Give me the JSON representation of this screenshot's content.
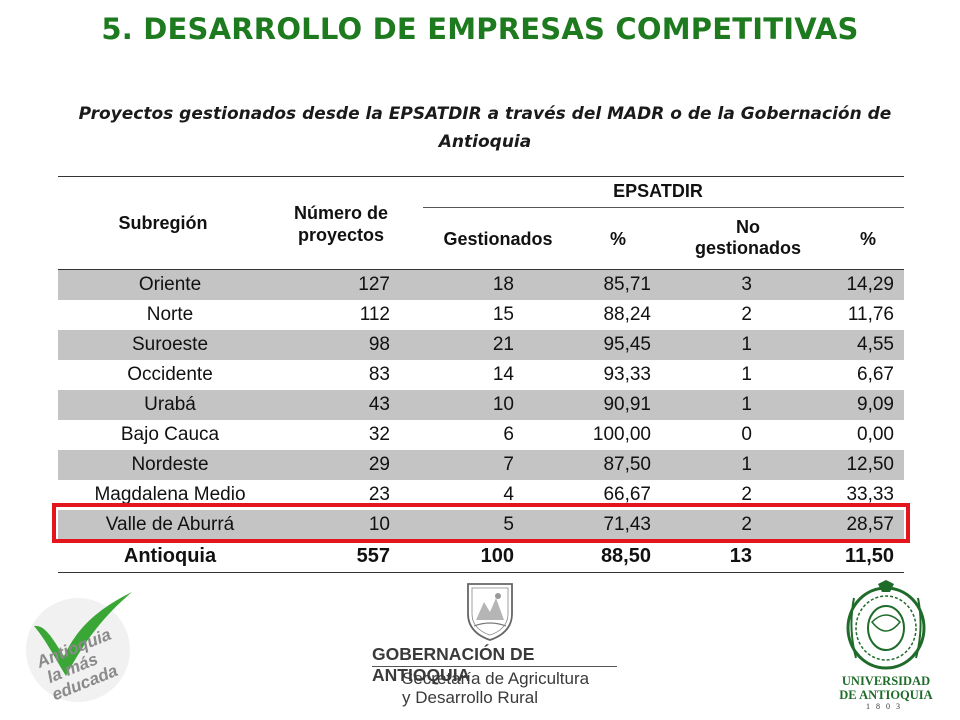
{
  "title": "5. DESARROLLO DE EMPRESAS COMPETITIVAS",
  "subtitle_line1": "Proyectos gestionados desde la EPSATDIR a través del MADR o de la Gobernación de",
  "subtitle_line2": "Antioquia",
  "table": {
    "headers": {
      "subregion": "Subregión",
      "numero_l1": "Número de",
      "numero_l2": "proyectos",
      "group": "EPSATDIR",
      "gestionados": "Gestionados",
      "pct": "%",
      "no_l1": "No",
      "no_l2": "gestionados",
      "pct2": "%"
    },
    "rows": [
      {
        "subregion": "Oriente",
        "numero": "127",
        "gestionados": "18",
        "pct": "85,71",
        "no_gestionados": "3",
        "pct2": "14,29"
      },
      {
        "subregion": "Norte",
        "numero": "112",
        "gestionados": "15",
        "pct": "88,24",
        "no_gestionados": "2",
        "pct2": "11,76"
      },
      {
        "subregion": "Suroeste",
        "numero": "98",
        "gestionados": "21",
        "pct": "95,45",
        "no_gestionados": "1",
        "pct2": "4,55"
      },
      {
        "subregion": "Occidente",
        "numero": "83",
        "gestionados": "14",
        "pct": "93,33",
        "no_gestionados": "1",
        "pct2": "6,67"
      },
      {
        "subregion": "Urabá",
        "numero": "43",
        "gestionados": "10",
        "pct": "90,91",
        "no_gestionados": "1",
        "pct2": "9,09"
      },
      {
        "subregion": "Bajo Cauca",
        "numero": "32",
        "gestionados": "6",
        "pct": "100,00",
        "no_gestionados": "0",
        "pct2": "0,00"
      },
      {
        "subregion": "Nordeste",
        "numero": "29",
        "gestionados": "7",
        "pct": "87,50",
        "no_gestionados": "1",
        "pct2": "12,50"
      },
      {
        "subregion": "Magdalena Medio",
        "numero": "23",
        "gestionados": "4",
        "pct": "66,67",
        "no_gestionados": "2",
        "pct2": "33,33"
      },
      {
        "subregion": "Valle de Aburrá",
        "numero": "10",
        "gestionados": "5",
        "pct": "71,43",
        "no_gestionados": "2",
        "pct2": "28,57"
      }
    ],
    "total": {
      "subregion": "Antioquia",
      "numero": "557",
      "gestionados": "100",
      "pct": "88,50",
      "no_gestionados": "13",
      "pct2": "11,50"
    },
    "highlighted_row": "Valle de Aburrá"
  },
  "logos": {
    "left": {
      "line1": "Antioquia",
      "line2": "la más",
      "line3": "educada"
    },
    "center": {
      "title": "GOBERNACIÓN DE ANTIOQUIA",
      "sub1": "Secretaría de Agricultura",
      "sub2": "y Desarrollo Rural"
    },
    "right": {
      "line1": "UNIVERSIDAD",
      "line2": "DE ANTIOQUIA",
      "line3": "1803"
    }
  },
  "colors": {
    "title": "#1e7a1e",
    "row_shade": "#c4c4c4",
    "highlight": "#e2161c",
    "logo_green": "#3aa635",
    "logo_gray": "#8a8a8a",
    "ua_green": "#1f6b2a"
  },
  "icons": [
    "check-icon",
    "coat-of-arms-icon",
    "university-seal-icon"
  ]
}
